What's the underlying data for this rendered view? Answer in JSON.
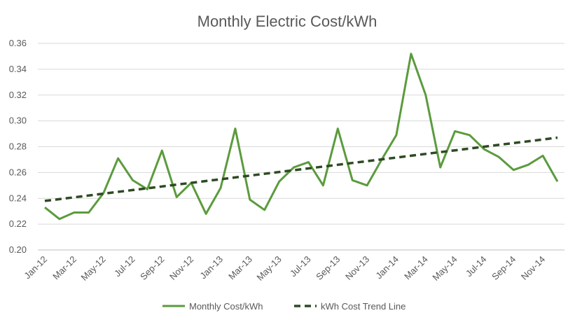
{
  "chart_data": {
    "type": "line",
    "title": "Monthly Electric Cost/kWh",
    "xlabel": "",
    "ylabel": "",
    "ylim": [
      0.2,
      0.36
    ],
    "y_ticks": [
      "0.20",
      "0.22",
      "0.24",
      "0.26",
      "0.28",
      "0.30",
      "0.32",
      "0.34",
      "0.36"
    ],
    "grid": true,
    "legend_position": "bottom",
    "x": [
      "Jan-12",
      "Feb-12",
      "Mar-12",
      "Apr-12",
      "May-12",
      "Jun-12",
      "Jul-12",
      "Aug-12",
      "Sep-12",
      "Oct-12",
      "Nov-12",
      "Dec-12",
      "Jan-13",
      "Feb-13",
      "Mar-13",
      "Apr-13",
      "May-13",
      "Jun-13",
      "Jul-13",
      "Aug-13",
      "Sep-13",
      "Oct-13",
      "Nov-13",
      "Dec-13",
      "Jan-14",
      "Feb-14",
      "Mar-14",
      "Apr-14",
      "May-14",
      "Jun-14",
      "Jul-14",
      "Aug-14",
      "Sep-14",
      "Oct-14",
      "Nov-14",
      "Dec-14"
    ],
    "x_tick_labels": [
      "Jan-12",
      "Mar-12",
      "May-12",
      "Jul-12",
      "Sep-12",
      "Nov-12",
      "Jan-13",
      "Mar-13",
      "May-13",
      "Jul-13",
      "Sep-13",
      "Nov-13",
      "Jan-14",
      "Mar-14",
      "May-14",
      "Jul-14",
      "Sep-14",
      "Nov-14"
    ],
    "series": [
      {
        "name": "Monthly Cost/kWh",
        "color": "#5b9b3d",
        "style": "solid",
        "values": [
          0.233,
          0.224,
          0.229,
          0.229,
          0.244,
          0.271,
          0.254,
          0.247,
          0.277,
          0.241,
          0.252,
          0.228,
          0.248,
          0.294,
          0.239,
          0.231,
          0.253,
          0.264,
          0.268,
          0.25,
          0.294,
          0.254,
          0.25,
          0.27,
          0.289,
          0.352,
          0.32,
          0.264,
          0.292,
          0.289,
          0.278,
          0.272,
          0.262,
          0.266,
          0.273,
          0.253
        ]
      },
      {
        "name": "kWh Cost Trend Line",
        "color": "#2e4a23",
        "style": "dashed",
        "values": [
          0.238,
          0.2394,
          0.2408,
          0.2422,
          0.2436,
          0.245,
          0.2464,
          0.2478,
          0.2492,
          0.2506,
          0.252,
          0.2534,
          0.2548,
          0.2562,
          0.2576,
          0.259,
          0.2604,
          0.2618,
          0.2632,
          0.2646,
          0.266,
          0.2674,
          0.2688,
          0.2702,
          0.2716,
          0.273,
          0.2744,
          0.2758,
          0.2772,
          0.2786,
          0.28,
          0.2814,
          0.2828,
          0.2842,
          0.2856,
          0.287
        ]
      }
    ]
  }
}
